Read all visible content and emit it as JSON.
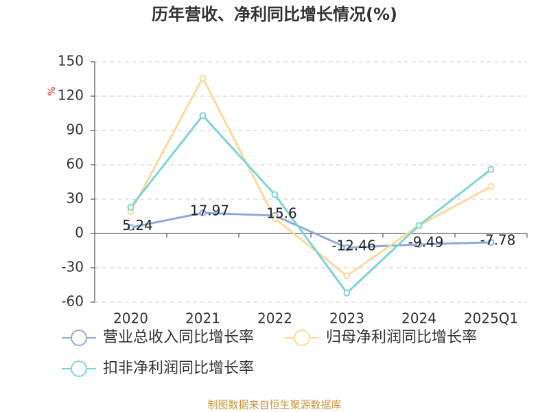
{
  "chart_data": {
    "type": "line",
    "title": "历年营收、净利同比增长情况(%)",
    "y_label": "%",
    "categories": [
      "2020",
      "2021",
      "2022",
      "2023",
      "2024",
      "2025Q1"
    ],
    "series": [
      {
        "name": "营业总收入同比增长率",
        "color": "#8eaadb",
        "values": [
          5.24,
          17.97,
          15.6,
          -12.46,
          -9.49,
          -7.78
        ],
        "data_labels": true
      },
      {
        "name": "归母净利润同比增长率",
        "color": "#fcd99a",
        "values": [
          19,
          136,
          13,
          -37,
          7,
          41
        ],
        "data_labels": false
      },
      {
        "name": "扣非净利润同比增长率",
        "color": "#7dd5d3",
        "values": [
          23,
          103,
          34,
          -52,
          7,
          56
        ],
        "data_labels": false
      }
    ],
    "ylim": [
      -60,
      150
    ],
    "yticks": [
      -60,
      -30,
      0,
      30,
      60,
      90,
      120,
      150
    ],
    "grid": true,
    "source": "制图数据来自恒生聚源数据库"
  }
}
